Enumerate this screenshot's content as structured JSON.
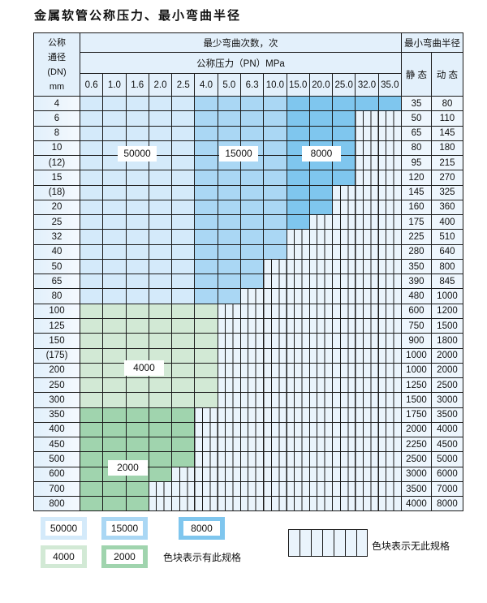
{
  "title": "金属软管公称压力、最小弯曲半径",
  "header": {
    "dn_lines": [
      "公称",
      "通径",
      "(DN)",
      "mm"
    ],
    "bend_count": "最少弯曲次数，次",
    "pressure": "公称压力（PN）MPa",
    "min_radius": "最小弯曲半径",
    "static": "静 态",
    "dynamic": "动 态"
  },
  "pressures": [
    "0.6",
    "1.0",
    "1.6",
    "2.0",
    "2.5",
    "4.0",
    "5.0",
    "6.3",
    "10.0",
    "15.0",
    "20.0",
    "25.0",
    "32.0",
    "35.0"
  ],
  "colors": {
    "50000": "#d4eafa",
    "15000": "#aad7f4",
    "8000": "#7fc6ee",
    "4000": "#d2e9d5",
    "2000": "#a0d4ae",
    "none": "#eaf4fc"
  },
  "blue_bands": [
    {
      "max_pn": "2.5",
      "value": "50000"
    },
    {
      "max_pn": "10.0",
      "value": "15000"
    },
    {
      "max_pn": "35.0",
      "value": "8000"
    }
  ],
  "rows": [
    {
      "dn": "4",
      "max_pn": "35.0",
      "group": "blue",
      "static": "35",
      "dynamic": "80"
    },
    {
      "dn": "6",
      "max_pn": "25.0",
      "group": "blue",
      "static": "50",
      "dynamic": "110"
    },
    {
      "dn": "8",
      "max_pn": "25.0",
      "group": "blue",
      "static": "65",
      "dynamic": "145"
    },
    {
      "dn": "10",
      "max_pn": "25.0",
      "group": "blue",
      "static": "80",
      "dynamic": "180"
    },
    {
      "dn": "(12)",
      "max_pn": "25.0",
      "group": "blue",
      "static": "95",
      "dynamic": "215"
    },
    {
      "dn": "15",
      "max_pn": "25.0",
      "group": "blue",
      "static": "120",
      "dynamic": "270"
    },
    {
      "dn": "(18)",
      "max_pn": "20.0",
      "group": "blue",
      "static": "145",
      "dynamic": "325"
    },
    {
      "dn": "20",
      "max_pn": "20.0",
      "group": "blue",
      "static": "160",
      "dynamic": "360"
    },
    {
      "dn": "25",
      "max_pn": "15.0",
      "group": "blue",
      "static": "175",
      "dynamic": "400"
    },
    {
      "dn": "32",
      "max_pn": "10.0",
      "group": "blue",
      "static": "225",
      "dynamic": "510"
    },
    {
      "dn": "40",
      "max_pn": "10.0",
      "group": "blue",
      "static": "280",
      "dynamic": "640"
    },
    {
      "dn": "50",
      "max_pn": "6.3",
      "group": "blue",
      "static": "350",
      "dynamic": "800"
    },
    {
      "dn": "65",
      "max_pn": "6.3",
      "group": "blue",
      "static": "390",
      "dynamic": "845"
    },
    {
      "dn": "80",
      "max_pn": "5.0",
      "group": "blue",
      "static": "480",
      "dynamic": "1000"
    },
    {
      "dn": "100",
      "max_pn": "4.0",
      "group": "4000",
      "static": "600",
      "dynamic": "1200"
    },
    {
      "dn": "125",
      "max_pn": "4.0",
      "group": "4000",
      "static": "750",
      "dynamic": "1500"
    },
    {
      "dn": "150",
      "max_pn": "4.0",
      "group": "4000",
      "static": "900",
      "dynamic": "1800"
    },
    {
      "dn": "(175)",
      "max_pn": "4.0",
      "group": "4000",
      "static": "1000",
      "dynamic": "2000"
    },
    {
      "dn": "200",
      "max_pn": "4.0",
      "group": "4000",
      "static": "1000",
      "dynamic": "2000"
    },
    {
      "dn": "250",
      "max_pn": "4.0",
      "group": "4000",
      "static": "1250",
      "dynamic": "2500"
    },
    {
      "dn": "300",
      "max_pn": "4.0",
      "group": "4000",
      "static": "1500",
      "dynamic": "3000"
    },
    {
      "dn": "350",
      "max_pn": "2.5",
      "group": "2000",
      "static": "1750",
      "dynamic": "3500"
    },
    {
      "dn": "400",
      "max_pn": "2.5",
      "group": "2000",
      "static": "2000",
      "dynamic": "4000"
    },
    {
      "dn": "450",
      "max_pn": "2.5",
      "group": "2000",
      "static": "2250",
      "dynamic": "4500"
    },
    {
      "dn": "500",
      "max_pn": "2.5",
      "group": "2000",
      "static": "2500",
      "dynamic": "5000"
    },
    {
      "dn": "600",
      "max_pn": "2.0",
      "group": "2000",
      "static": "3000",
      "dynamic": "6000"
    },
    {
      "dn": "700",
      "max_pn": "1.6",
      "group": "2000",
      "static": "3500",
      "dynamic": "7000"
    },
    {
      "dn": "800",
      "max_pn": "1.6",
      "group": "2000",
      "static": "4000",
      "dynamic": "8000"
    }
  ],
  "region_labels": [
    "50000",
    "15000",
    "8000",
    "4000",
    "2000"
  ],
  "legend": {
    "items": [
      "50000",
      "15000",
      "8000",
      "4000",
      "2000"
    ],
    "has_spec": "色块表示有此规格",
    "no_spec": "色块表示无此规格"
  }
}
